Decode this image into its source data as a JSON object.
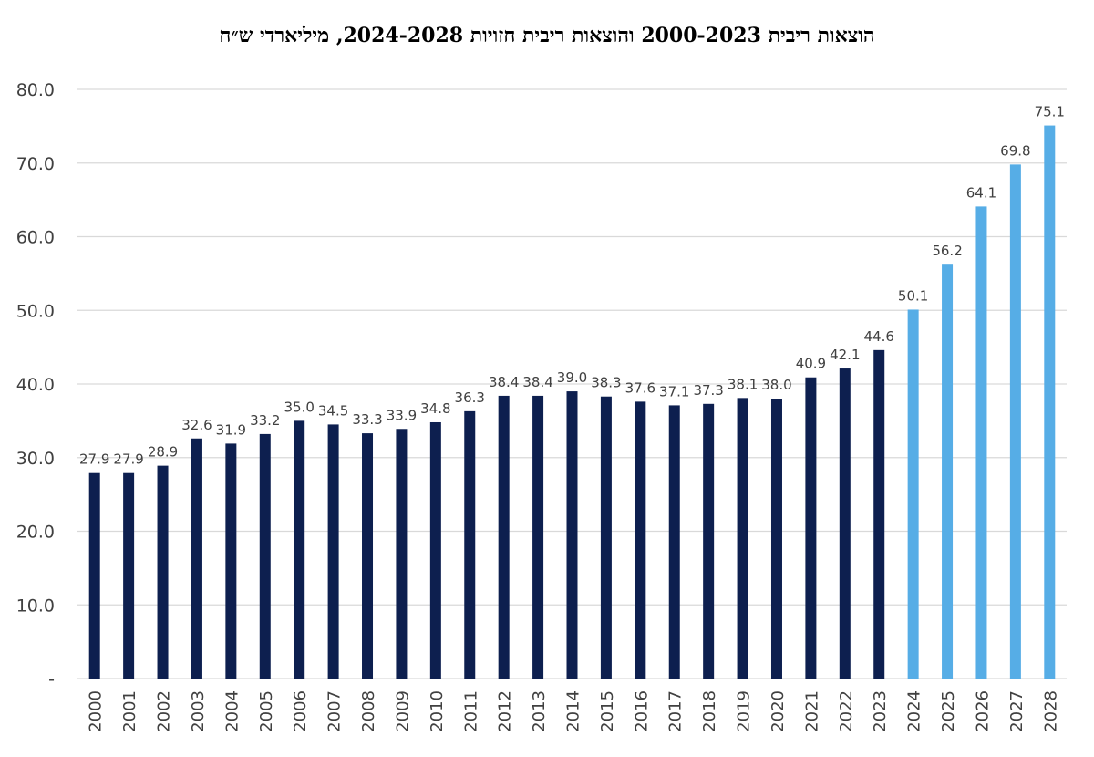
{
  "chart_data": {
    "type": "bar",
    "title": "הוצאות ריבית 2000-2023 והוצאות ריבית חזויות 2024-2028, מיליארדי ש״ח",
    "categories": [
      "2000",
      "2001",
      "2002",
      "2003",
      "2004",
      "2005",
      "2006",
      "2007",
      "2008",
      "2009",
      "2010",
      "2011",
      "2012",
      "2013",
      "2014",
      "2015",
      "2016",
      "2017",
      "2018",
      "2019",
      "2020",
      "2021",
      "2022",
      "2023",
      "2024",
      "2025",
      "2026",
      "2027",
      "2028"
    ],
    "values": [
      27.9,
      27.9,
      28.9,
      32.6,
      31.9,
      33.2,
      35.0,
      34.5,
      33.3,
      33.9,
      34.8,
      36.3,
      38.4,
      38.4,
      39.0,
      38.3,
      37.6,
      37.1,
      37.3,
      38.1,
      38.0,
      40.9,
      42.1,
      44.6,
      50.1,
      56.2,
      64.1,
      69.8,
      75.1
    ],
    "value_labels": [
      "27.9",
      "27.9",
      "28.9",
      "32.6",
      "31.9",
      "33.2",
      "35.0",
      "34.5",
      "33.3",
      "33.9",
      "34.8",
      "36.3",
      "38.4",
      "38.4",
      "39.0",
      "38.3",
      "37.6",
      "37.1",
      "37.3",
      "38.1",
      "38.0",
      "40.9",
      "42.1",
      "44.6",
      "50.1",
      "56.2",
      "64.1",
      "69.8",
      "75.1"
    ],
    "y_ticks": [
      "-",
      "10.0",
      "20.0",
      "30.0",
      "40.0",
      "50.0",
      "60.0",
      "70.0",
      "80.0"
    ],
    "ylim": [
      0,
      80
    ],
    "grid": true,
    "xlabel": "",
    "ylabel": "",
    "colors": {
      "actual": "#0d1f4f",
      "forecast": "#56ade6",
      "grid": "#d9d9d9"
    },
    "forecast_from": "2024"
  }
}
